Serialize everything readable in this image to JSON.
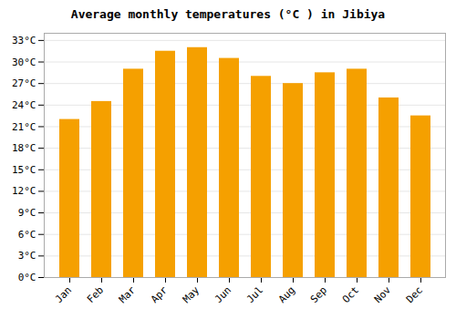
{
  "chart_data": {
    "type": "bar",
    "title": "Average monthly temperatures (°C ) in Jibiya",
    "categories": [
      "Jan",
      "Feb",
      "Mar",
      "Apr",
      "May",
      "Jun",
      "Jul",
      "Aug",
      "Sep",
      "Oct",
      "Nov",
      "Dec"
    ],
    "values": [
      22,
      24.5,
      29,
      31.5,
      32,
      30.5,
      28,
      27,
      28.5,
      29,
      25,
      22.5
    ],
    "color": "#F5A000",
    "ylim": [
      0,
      34
    ],
    "yticks": [
      {
        "value": 0,
        "label": "0°C"
      },
      {
        "value": 3,
        "label": "3°C"
      },
      {
        "value": 6,
        "label": "6°C"
      },
      {
        "value": 9,
        "label": "9°C"
      },
      {
        "value": 12,
        "label": "12°C"
      },
      {
        "value": 15,
        "label": "15°C"
      },
      {
        "value": 18,
        "label": "18°C"
      },
      {
        "value": 21,
        "label": "21°C"
      },
      {
        "value": 24,
        "label": "24°C"
      },
      {
        "value": 27,
        "label": "27°C"
      },
      {
        "value": 30,
        "label": "30°C"
      },
      {
        "value": 33,
        "label": "33°C"
      }
    ],
    "grid": true
  }
}
